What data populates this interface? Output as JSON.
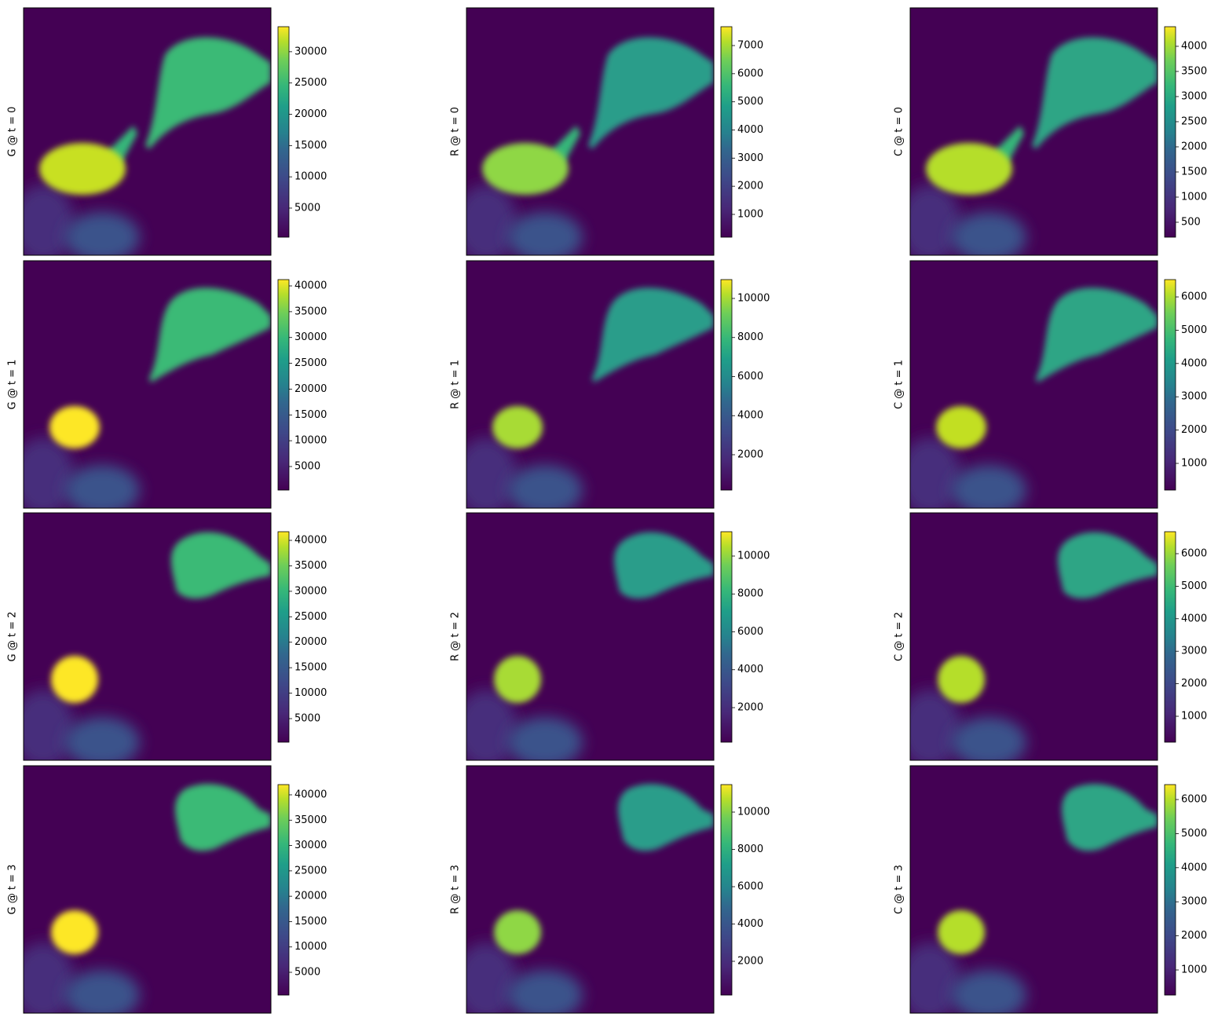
{
  "chart_data": [
    {
      "type": "image",
      "ylabel": "G @ t = 0",
      "cmap": "viridis",
      "clim": [
        350,
        34000
      ],
      "cticks": [
        5000,
        10000,
        15000,
        20000,
        25000,
        30000
      ]
    },
    {
      "type": "image",
      "ylabel": "R @ t = 0",
      "cmap": "viridis",
      "clim": [
        190,
        7670
      ],
      "cticks": [
        1000,
        2000,
        3000,
        4000,
        5000,
        6000,
        7000
      ]
    },
    {
      "type": "image",
      "ylabel": "C @ t = 0",
      "cmap": "viridis",
      "clim": [
        203,
        4390
      ],
      "cticks": [
        500,
        1000,
        1500,
        2000,
        2500,
        3000,
        3500,
        4000
      ]
    },
    {
      "type": "image",
      "ylabel": "G @ t = 1",
      "cmap": "viridis",
      "clim": [
        435,
        41220
      ],
      "cticks": [
        5000,
        10000,
        15000,
        20000,
        25000,
        30000,
        35000,
        40000
      ]
    },
    {
      "type": "image",
      "ylabel": "R @ t = 1",
      "cmap": "viridis",
      "clim": [
        190,
        10965
      ],
      "cticks": [
        2000,
        4000,
        6000,
        8000,
        10000
      ]
    },
    {
      "type": "image",
      "ylabel": "C @ t = 1",
      "cmap": "viridis",
      "clim": [
        198,
        6520
      ],
      "cticks": [
        1000,
        2000,
        3000,
        4000,
        5000,
        6000
      ]
    },
    {
      "type": "image",
      "ylabel": "G @ t = 2",
      "cmap": "viridis",
      "clim": [
        375,
        41700
      ],
      "cticks": [
        5000,
        10000,
        15000,
        20000,
        25000,
        30000,
        35000,
        40000
      ]
    },
    {
      "type": "image",
      "ylabel": "R @ t = 2",
      "cmap": "viridis",
      "clim": [
        176,
        11285
      ],
      "cticks": [
        2000,
        4000,
        6000,
        8000,
        10000
      ]
    },
    {
      "type": "image",
      "ylabel": "C @ t = 2",
      "cmap": "viridis",
      "clim": [
        203,
        6676
      ],
      "cticks": [
        1000,
        2000,
        3000,
        4000,
        5000,
        6000
      ]
    },
    {
      "type": "image",
      "ylabel": "G @ t = 3",
      "cmap": "viridis",
      "clim": [
        510,
        42013
      ],
      "cticks": [
        5000,
        10000,
        15000,
        20000,
        25000,
        30000,
        35000,
        40000
      ]
    },
    {
      "type": "image",
      "ylabel": "R @ t = 3",
      "cmap": "viridis",
      "clim": [
        189,
        11474
      ],
      "cticks": [
        2000,
        4000,
        6000,
        8000,
        10000
      ]
    },
    {
      "type": "image",
      "ylabel": "C @ t = 3",
      "cmap": "viridis",
      "clim": [
        263,
        6438
      ],
      "cticks": [
        1000,
        2000,
        3000,
        4000,
        5000,
        6000
      ]
    }
  ]
}
